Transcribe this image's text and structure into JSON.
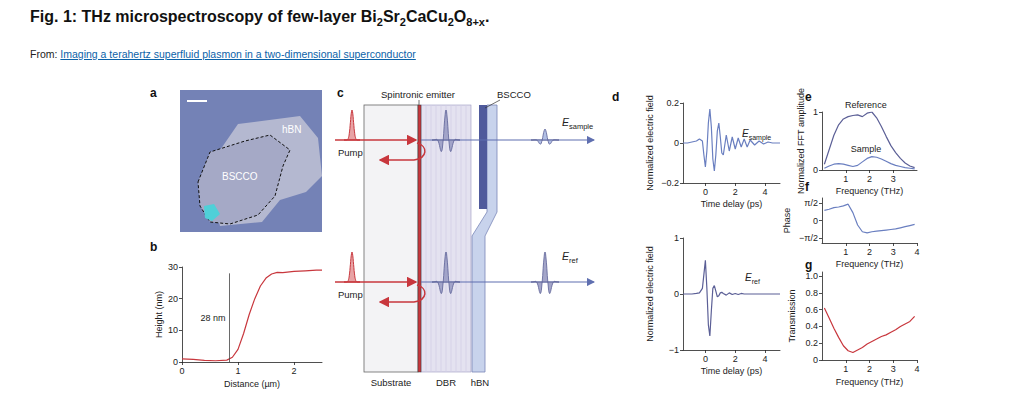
{
  "header": {
    "title": [
      {
        "text": "Fig. 1: THz microspectroscopy of few-layer Bi"
      },
      {
        "sub": "2"
      },
      {
        "text": "Sr"
      },
      {
        "sub": "2"
      },
      {
        "text": "CaCu"
      },
      {
        "sub": "2"
      },
      {
        "text": "O"
      },
      {
        "sub": "8+x"
      },
      {
        "text": "."
      }
    ],
    "source_label": "From:",
    "source_link": "Imaging a terahertz superfluid plasmon in a two-dimensional superconductor"
  },
  "photo": {
    "panel": "a",
    "labels": [
      "hBN",
      "BSCCO"
    ]
  },
  "diagram": {
    "panel": "c",
    "top_labels": [
      "Spintronic emitter",
      "BSCCO"
    ],
    "bottom_labels": [
      "Substrate",
      "DBR",
      "hBN"
    ],
    "pump_labels": [
      "Pump",
      "Pump"
    ],
    "outputs": [
      {
        "symbol": "E",
        "subscript": "sample"
      },
      {
        "symbol": "E",
        "subscript": "ref"
      }
    ]
  },
  "chart_data": [
    {
      "panel": "b",
      "type": "line",
      "x_label": "Distance (µm)",
      "y_label": "Height (nm)",
      "x": [
        0,
        0.2,
        0.4,
        0.6,
        0.8,
        0.9,
        1.0,
        1.1,
        1.2,
        1.3,
        1.4,
        1.5,
        1.6,
        1.7,
        1.8,
        2.0,
        2.2,
        2.4,
        2.5
      ],
      "values": [
        1.0,
        0.8,
        0.5,
        0.4,
        0.6,
        1.5,
        4,
        9,
        15,
        20,
        24,
        26.5,
        27.8,
        28.3,
        28.2,
        28.6,
        28.8,
        29,
        29
      ],
      "color": "#c8373d",
      "xlim": [
        0,
        2.5
      ],
      "xticks": [
        0,
        1,
        2
      ],
      "ylim": [
        0,
        30
      ],
      "yticks": [
        0,
        10,
        20,
        30
      ],
      "grid": false,
      "annotation": {
        "text": "28 nm",
        "x": 0.85,
        "from": 0,
        "to": 28
      }
    },
    {
      "panel": "d",
      "type": "line",
      "x_label": "Time delay (ps)",
      "y_label": "Normalized electric field",
      "x": [
        -1.5,
        -1.2,
        -0.9,
        -0.6,
        -0.4,
        -0.2,
        -0.1,
        0,
        0.1,
        0.2,
        0.3,
        0.4,
        0.5,
        0.6,
        0.7,
        0.8,
        0.9,
        1.0,
        1.1,
        1.2,
        1.4,
        1.6,
        1.8,
        2.0,
        2.2,
        2.4,
        2.6,
        2.8,
        3.0,
        3.3,
        3.6,
        3.9,
        4.2,
        4.5,
        4.8,
        5.0
      ],
      "values": [
        0,
        0,
        0.005,
        0.01,
        0.02,
        0.01,
        -0.06,
        -0.12,
        -0.04,
        0.1,
        0.17,
        0.08,
        -0.08,
        -0.14,
        -0.06,
        0.06,
        0.1,
        0.03,
        -0.05,
        -0.06,
        0.04,
        -0.04,
        0.03,
        -0.03,
        0.025,
        -0.02,
        0.02,
        -0.02,
        0.015,
        -0.01,
        0.01,
        -0.005,
        0.005,
        0,
        0,
        0
      ],
      "color": "#6a7fc0",
      "xlim": [
        -1.5,
        5
      ],
      "xticks": [
        0,
        2,
        4
      ],
      "ylim": [
        -0.2,
        0.2
      ],
      "yticks": [
        {
          "value": -0.2,
          "label": "−0.2"
        },
        0,
        0.2
      ],
      "grid": false,
      "annotation": {
        "symbol": "E",
        "subscript": "sample"
      }
    },
    {
      "type": "line",
      "x_label": "Time delay (ps)",
      "y_label": "Normalized electric field",
      "x": [
        -1.5,
        -1.2,
        -0.9,
        -0.6,
        -0.4,
        -0.2,
        -0.1,
        0,
        0.1,
        0.2,
        0.3,
        0.4,
        0.5,
        0.6,
        0.7,
        0.8,
        0.9,
        1.0,
        1.1,
        1.2,
        1.4,
        1.6,
        1.8,
        2.0,
        2.2,
        2.4,
        2.6,
        2.8,
        3.0,
        3.3,
        3.6,
        3.9,
        4.2,
        4.5,
        4.8,
        5.0
      ],
      "values": [
        0,
        0,
        0,
        0.01,
        0.02,
        0.1,
        0.35,
        0.6,
        0.1,
        -0.55,
        -0.75,
        -0.3,
        0.1,
        0.15,
        0.05,
        -0.05,
        -0.03,
        0.02,
        0.03,
        0.01,
        -0.02,
        0.02,
        -0.01,
        0.01,
        -0.01,
        0.01,
        0,
        0,
        0,
        0,
        0,
        0,
        0,
        0,
        0,
        0
      ],
      "color": "#5b5f96",
      "xlim": [
        -1.5,
        5
      ],
      "xticks": [
        0,
        2,
        4
      ],
      "ylim": [
        -1,
        1
      ],
      "yticks": [
        {
          "value": -1,
          "label": "−1"
        },
        0,
        1
      ],
      "grid": false,
      "annotation": {
        "symbol": "E",
        "subscript": "ref"
      }
    },
    {
      "panel": "e",
      "type": "line",
      "x_label": "Frequency (THz)",
      "y_label": "Normalized FFT amplitude",
      "x": [
        0.1,
        0.3,
        0.5,
        0.7,
        0.9,
        1.1,
        1.3,
        1.5,
        1.7,
        1.9,
        2.1,
        2.3,
        2.5,
        2.7,
        2.9,
        3.1,
        3.3,
        3.5,
        3.7,
        3.9
      ],
      "series": [
        {
          "name": "Reference",
          "color": "#5b5f96",
          "values": [
            0.1,
            0.35,
            0.6,
            0.78,
            0.88,
            0.92,
            0.94,
            0.95,
            0.92,
            0.98,
            1.0,
            0.9,
            0.75,
            0.58,
            0.42,
            0.3,
            0.2,
            0.12,
            0.07,
            0.04
          ]
        },
        {
          "name": "Sample",
          "color": "#6a7fc0",
          "values": [
            0.03,
            0.07,
            0.1,
            0.11,
            0.1,
            0.08,
            0.06,
            0.08,
            0.14,
            0.2,
            0.23,
            0.22,
            0.19,
            0.15,
            0.11,
            0.08,
            0.06,
            0.04,
            0.03,
            0.02
          ]
        }
      ],
      "xlim": [
        0,
        4
      ],
      "xticks": [
        1,
        2,
        3
      ],
      "ylim": [
        0,
        1
      ],
      "yticks": [
        0,
        1
      ],
      "grid": false
    },
    {
      "panel": "f",
      "type": "line",
      "x_label": "Frequency (THz)",
      "y_label": "Phase",
      "x": [
        0.1,
        0.3,
        0.5,
        0.7,
        0.9,
        1.1,
        1.3,
        1.5,
        1.7,
        1.9,
        2.1,
        2.3,
        2.5,
        2.7,
        2.9,
        3.1,
        3.3,
        3.5,
        3.7,
        3.9
      ],
      "values": [
        0.9,
        1.0,
        1.15,
        1.2,
        1.3,
        1.45,
        0.7,
        -0.4,
        -1.0,
        -1.1,
        -1.0,
        -0.95,
        -0.9,
        -0.85,
        -0.8,
        -0.75,
        -0.65,
        -0.55,
        -0.45,
        -0.35
      ],
      "color": "#6a7fc0",
      "xlim": [
        0,
        4
      ],
      "xticks": [
        1,
        2,
        3,
        4
      ],
      "ylim": [
        -2,
        2
      ],
      "yticks": [
        {
          "value": 1.5708,
          "label": "π/2"
        },
        0,
        {
          "value": -1.5708,
          "label": "−π/2"
        }
      ],
      "grid": false
    },
    {
      "panel": "g",
      "type": "line",
      "x_label": "Frequency (THz)",
      "y_label": "Transmission",
      "x": [
        0.1,
        0.3,
        0.5,
        0.7,
        0.9,
        1.1,
        1.3,
        1.5,
        1.7,
        1.9,
        2.1,
        2.3,
        2.5,
        2.7,
        2.9,
        3.1,
        3.3,
        3.5,
        3.7,
        3.9
      ],
      "values": [
        0.62,
        0.5,
        0.38,
        0.27,
        0.17,
        0.11,
        0.09,
        0.12,
        0.15,
        0.19,
        0.22,
        0.25,
        0.28,
        0.3,
        0.33,
        0.36,
        0.4,
        0.43,
        0.46,
        0.52
      ],
      "color": "#c8373d",
      "xlim": [
        0,
        4
      ],
      "xticks": [
        1,
        2,
        3,
        4
      ],
      "ylim": [
        0,
        1.05
      ],
      "yticks": [
        0,
        0.2,
        0.4,
        0.6,
        0.8,
        {
          "value": 1,
          "label": "1.0"
        }
      ],
      "grid": false
    }
  ]
}
